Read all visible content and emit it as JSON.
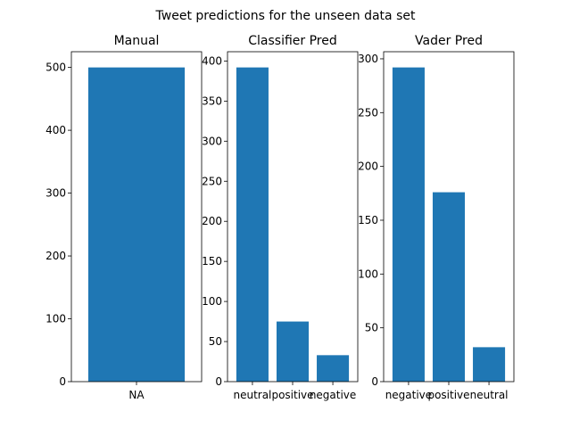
{
  "suptitle": "Tweet predictions for the unseen data set",
  "bar_color": "#1f77b4",
  "chart_data": [
    {
      "type": "bar",
      "title": "Manual",
      "categories": [
        "NA"
      ],
      "values": [
        500
      ],
      "ylim": [
        0,
        525
      ],
      "yticks": [
        0,
        100,
        200,
        300,
        400,
        500
      ]
    },
    {
      "type": "bar",
      "title": "Classifier Pred",
      "categories": [
        "neutral",
        "positive",
        "negative"
      ],
      "values": [
        392,
        75,
        33
      ],
      "ylim": [
        0,
        411.6
      ],
      "yticks": [
        0,
        50,
        100,
        150,
        200,
        250,
        300,
        350,
        400
      ]
    },
    {
      "type": "bar",
      "title": "Vader Pred",
      "categories": [
        "negative",
        "positive",
        "neutral"
      ],
      "values": [
        292,
        176,
        32
      ],
      "ylim": [
        0,
        306.6
      ],
      "yticks": [
        0,
        50,
        100,
        150,
        200,
        250,
        300
      ]
    }
  ]
}
